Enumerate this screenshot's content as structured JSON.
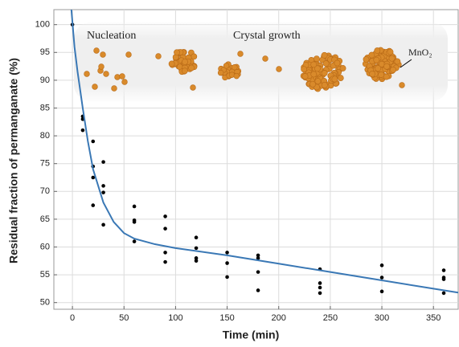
{
  "chart_data": {
    "type": "scatter",
    "x_label": "Time (min)",
    "y_label": "Residual fraction of permanganate (%)",
    "annotations": [
      "Nucleation",
      "Crystal growth",
      "MnO₂"
    ],
    "xlim": [
      -18,
      374
    ],
    "ylim": [
      48.8,
      102.7
    ],
    "xticks": [
      0,
      50,
      100,
      150,
      200,
      250,
      300,
      350
    ],
    "yticks": [
      50,
      55,
      60,
      65,
      70,
      75,
      80,
      85,
      90,
      95,
      100
    ],
    "grid": true,
    "series": [
      {
        "type": "scatter",
        "color": "#000000",
        "x": [
          0,
          10,
          10,
          10,
          20,
          20,
          20,
          20,
          30,
          30,
          30,
          30,
          60,
          60,
          60,
          60,
          90,
          90,
          90,
          90,
          120,
          120,
          120,
          120,
          150,
          150,
          150,
          180,
          180,
          180,
          180,
          240,
          240,
          240,
          240,
          300,
          300,
          300,
          360,
          360,
          360,
          360
        ],
        "y": [
          100,
          83.5,
          83,
          81,
          79,
          74.5,
          72.5,
          67.5,
          75.3,
          71,
          69.8,
          64,
          67.3,
          64.8,
          64.5,
          61,
          65.5,
          63.3,
          59,
          57.3,
          61.7,
          59.8,
          58,
          57.5,
          59,
          57.1,
          54.6,
          58.5,
          58,
          55.5,
          52.2,
          56,
          53.5,
          52.7,
          51.7,
          56.7,
          54.5,
          52,
          55.8,
          54.5,
          54.2,
          51.7
        ]
      },
      {
        "type": "line",
        "color": "#3a78b5",
        "x": [
          -1,
          2,
          5,
          10,
          15,
          20,
          30,
          40,
          50,
          60,
          80,
          100,
          150,
          200,
          250,
          300,
          350,
          374
        ],
        "y": [
          102.7,
          96,
          91.5,
          85,
          79,
          74,
          68,
          64.5,
          62.5,
          61.5,
          60.5,
          59.8,
          58.5,
          57,
          55.5,
          54,
          52.5,
          51.8
        ]
      }
    ]
  }
}
